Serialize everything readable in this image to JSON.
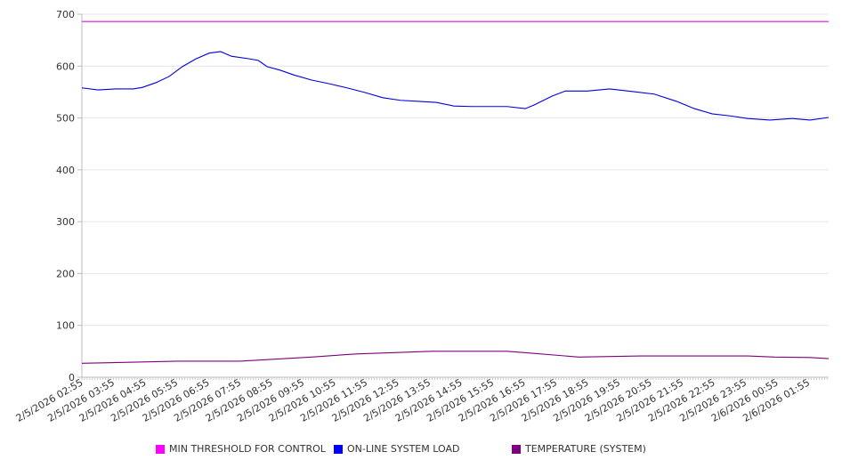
{
  "chart_data": {
    "type": "line",
    "title": "",
    "xlabel": "",
    "ylabel": "",
    "x_unit": "hours since 2/5/2026 02:55",
    "xlim": [
      0,
      23.63
    ],
    "ylim": [
      0,
      700
    ],
    "yticks": [
      0,
      100,
      200,
      300,
      400,
      500,
      600,
      700
    ],
    "xtick_labels": [
      "2/5/2026 02:55",
      "2/5/2026 03:55",
      "2/5/2026 04:55",
      "2/5/2026 05:55",
      "2/5/2026 06:55",
      "2/5/2026 07:55",
      "2/5/2026 08:55",
      "2/5/2026 09:55",
      "2/5/2026 10:55",
      "2/5/2026 11:55",
      "2/5/2026 12:55",
      "2/5/2026 13:55",
      "2/5/2026 14:55",
      "2/5/2026 15:55",
      "2/5/2026 16:55",
      "2/5/2026 17:55",
      "2/5/2026 18:55",
      "2/5/2026 19:55",
      "2/5/2026 20:55",
      "2/5/2026 21:55",
      "2/5/2026 22:55",
      "2/5/2026 23:55",
      "2/6/2026 00:55",
      "2/6/2026 01:55"
    ],
    "grid": true,
    "legend_position": "bottom",
    "series": [
      {
        "name": "MIN THRESHOLD FOR CONTROL",
        "color": "#e010e0",
        "points": [
          [
            0,
            686
          ],
          [
            23.63,
            686
          ]
        ]
      },
      {
        "name": "ON-LINE SYSTEM LOAD",
        "color": "#0000dd",
        "points": [
          [
            0,
            558
          ],
          [
            0.51,
            554
          ],
          [
            1.07,
            556
          ],
          [
            1.63,
            556
          ],
          [
            1.92,
            559
          ],
          [
            2.34,
            568
          ],
          [
            2.76,
            580
          ],
          [
            3.18,
            599
          ],
          [
            3.61,
            614
          ],
          [
            4.03,
            625
          ],
          [
            4.39,
            628
          ],
          [
            4.73,
            619
          ],
          [
            5.3,
            614
          ],
          [
            5.58,
            611
          ],
          [
            5.86,
            599
          ],
          [
            6.28,
            592
          ],
          [
            6.7,
            583
          ],
          [
            7.27,
            573
          ],
          [
            7.83,
            566
          ],
          [
            8.39,
            558
          ],
          [
            8.96,
            549
          ],
          [
            9.52,
            539
          ],
          [
            10.08,
            534
          ],
          [
            10.65,
            532
          ],
          [
            11.21,
            530
          ],
          [
            11.77,
            523
          ],
          [
            12.34,
            522
          ],
          [
            12.9,
            522
          ],
          [
            13.46,
            522
          ],
          [
            14.03,
            518
          ],
          [
            14.31,
            525
          ],
          [
            14.87,
            542
          ],
          [
            15.3,
            552
          ],
          [
            16,
            552
          ],
          [
            16.7,
            556
          ],
          [
            17.41,
            551
          ],
          [
            18.11,
            546
          ],
          [
            18.82,
            532
          ],
          [
            19.38,
            518
          ],
          [
            19.94,
            508
          ],
          [
            20.51,
            504
          ],
          [
            21.07,
            499
          ],
          [
            21.77,
            496
          ],
          [
            22.48,
            499
          ],
          [
            23.04,
            496
          ],
          [
            23.63,
            501
          ]
        ]
      },
      {
        "name": "TEMPERATURE (SYSTEM)",
        "color": "#800080",
        "points": [
          [
            0,
            27
          ],
          [
            1.63,
            29
          ],
          [
            3.04,
            31
          ],
          [
            5.01,
            31
          ],
          [
            5.86,
            34
          ],
          [
            7.27,
            39
          ],
          [
            8.68,
            45
          ],
          [
            10.08,
            48
          ],
          [
            11.07,
            50
          ],
          [
            13.46,
            50
          ],
          [
            14.31,
            46
          ],
          [
            15.72,
            39
          ],
          [
            17.69,
            41
          ],
          [
            21.07,
            41
          ],
          [
            21.92,
            39
          ],
          [
            23.04,
            38
          ],
          [
            23.63,
            36
          ]
        ]
      }
    ]
  }
}
